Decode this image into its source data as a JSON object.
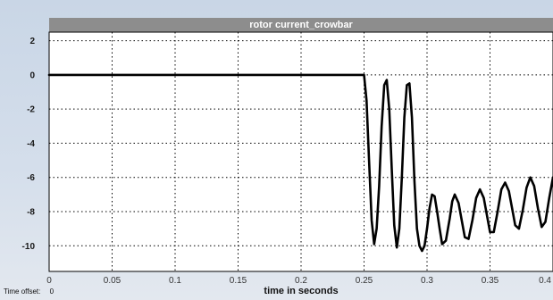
{
  "window": {
    "time_offset_label": "Time offset:",
    "time_offset_value": "0"
  },
  "chart_data": {
    "type": "line",
    "title": "rotor current_crowbar",
    "xlabel": "time in seconds",
    "ylabel": "",
    "xlim": [
      0,
      0.4
    ],
    "ylim": [
      -11.5,
      2.5
    ],
    "grid": true,
    "x_ticks": [
      "0",
      "0.05",
      "0.1",
      "0.15",
      "0.2",
      "0.25",
      "0.3",
      "0.35",
      "0.4"
    ],
    "y_ticks": [
      "2",
      "0",
      "-2",
      "-4",
      "-6",
      "-8",
      "-10"
    ],
    "series": [
      {
        "color": "#000000",
        "x": [
          0,
          0.05,
          0.1,
          0.15,
          0.2,
          0.25,
          0.252,
          0.254,
          0.256,
          0.258,
          0.26,
          0.262,
          0.264,
          0.266,
          0.268,
          0.27,
          0.272,
          0.274,
          0.276,
          0.278,
          0.28,
          0.282,
          0.284,
          0.286,
          0.288,
          0.29,
          0.292,
          0.294,
          0.296,
          0.298,
          0.3,
          0.302,
          0.304,
          0.306,
          0.308,
          0.31,
          0.312,
          0.315,
          0.318,
          0.32,
          0.322,
          0.325,
          0.328,
          0.33,
          0.333,
          0.336,
          0.339,
          0.342,
          0.345,
          0.348,
          0.35,
          0.353,
          0.356,
          0.359,
          0.362,
          0.365,
          0.368,
          0.37,
          0.373,
          0.376,
          0.379,
          0.382,
          0.385,
          0.388,
          0.391,
          0.394,
          0.397,
          0.4
        ],
        "y": [
          0,
          0,
          0,
          0,
          0,
          0,
          -1.5,
          -5,
          -8.5,
          -9.9,
          -9.0,
          -6.5,
          -3.0,
          -0.6,
          -0.3,
          -2.0,
          -5.5,
          -8.8,
          -10.1,
          -9.0,
          -6.0,
          -2.5,
          -0.6,
          -0.5,
          -2.5,
          -6.2,
          -9.0,
          -10.0,
          -10.3,
          -10.0,
          -9.0,
          -7.8,
          -7.0,
          -7.1,
          -8.0,
          -9.0,
          -9.9,
          -9.7,
          -8.4,
          -7.4,
          -7.0,
          -7.5,
          -8.7,
          -9.5,
          -9.6,
          -8.5,
          -7.2,
          -6.7,
          -7.2,
          -8.4,
          -9.2,
          -9.2,
          -8.0,
          -6.7,
          -6.3,
          -6.8,
          -8.0,
          -8.8,
          -9.0,
          -7.9,
          -6.6,
          -6.0,
          -6.5,
          -7.8,
          -8.9,
          -8.6,
          -7.2,
          -6.0
        ]
      }
    ]
  }
}
